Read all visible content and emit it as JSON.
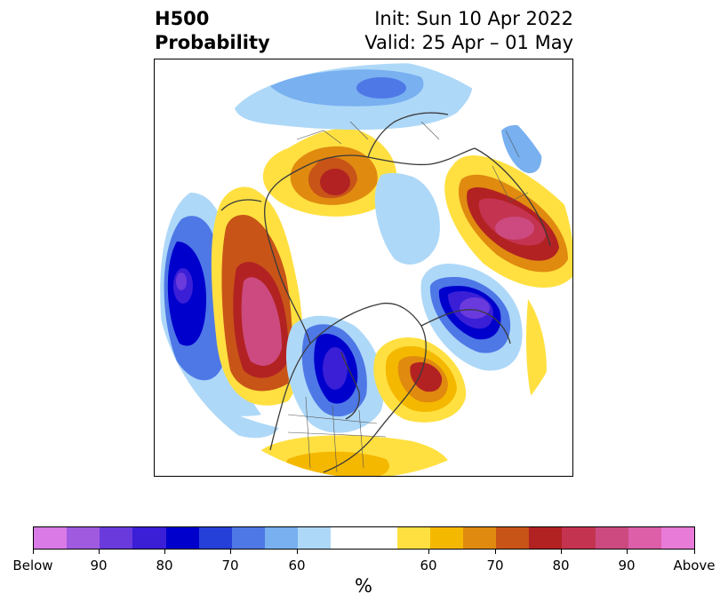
{
  "title": {
    "left_line1": "H500",
    "left_line2": "Probability",
    "right_line1": "Init: Sun 10 Apr 2022",
    "right_line2": "Valid: 25 Apr – 01 May"
  },
  "map": {
    "projection": "north-polar-stereographic",
    "features": [
      {
        "name": "aleutian-below-anomaly",
        "type": "below",
        "level": 90
      },
      {
        "name": "western-north-america-above-anomaly",
        "type": "above",
        "level": 90
      },
      {
        "name": "hudson-bay-below-anomaly",
        "type": "below",
        "level": 90
      },
      {
        "name": "labrador-above-anomaly",
        "type": "above",
        "level": 80
      },
      {
        "name": "north-atlantic-below-anomaly",
        "type": "below",
        "level": 90
      },
      {
        "name": "siberia-above-anomaly",
        "type": "above",
        "level": 80
      },
      {
        "name": "russia-above-anomaly",
        "type": "above",
        "level": 90
      },
      {
        "name": "southern-us-above-anomaly",
        "type": "above",
        "level": 60
      }
    ]
  },
  "colorbar": {
    "colors": [
      "#d97ae6",
      "#a05ae0",
      "#6a3adc",
      "#3a1fd6",
      "#0000cd",
      "#2440d8",
      "#4e78e6",
      "#78b0f0",
      "#aed8f8",
      "#ffffff",
      "#ffe040",
      "#f5b800",
      "#e08a10",
      "#c85418",
      "#b22222",
      "#c43350",
      "#cc4a80",
      "#dc5fa8",
      "#e87ad8"
    ],
    "tick_labels": [
      "Below",
      "90",
      "80",
      "70",
      "60",
      "60",
      "70",
      "80",
      "90",
      "Above"
    ],
    "unit_label": "%"
  }
}
